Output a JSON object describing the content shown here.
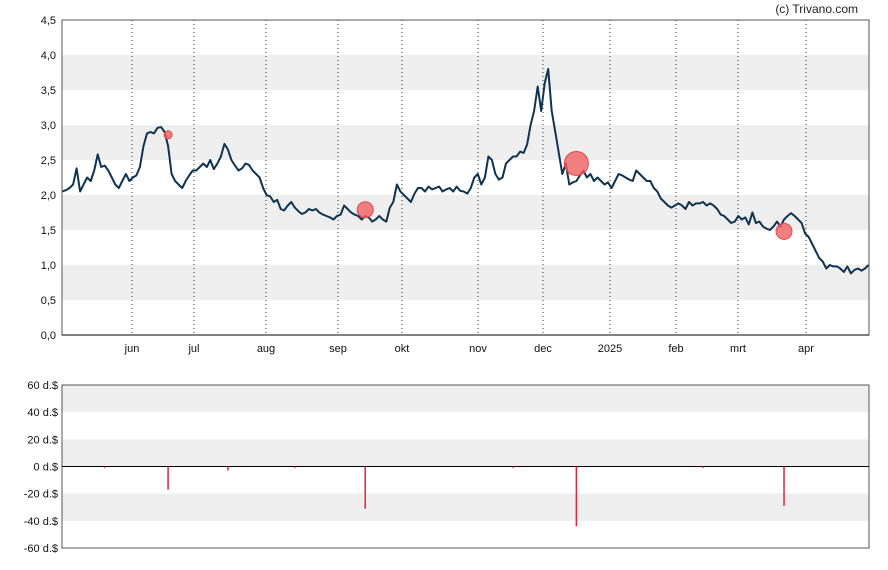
{
  "copyright": "(c) Trivano.com",
  "colors": {
    "line": "#0f3350",
    "band": "#eeeeee",
    "marker": "#f06060",
    "bar": "#e8203a"
  },
  "chart_data": [
    {
      "type": "line",
      "title": "",
      "ylim": [
        0,
        4.5
      ],
      "y_ticks": [
        "0,0",
        "0,5",
        "1,0",
        "1,5",
        "2,0",
        "2,5",
        "3,0",
        "3,5",
        "4,0",
        "4,5"
      ],
      "x_labels": [
        "jun",
        "jul",
        "aug",
        "sep",
        "okt",
        "nov",
        "dec",
        "2025",
        "feb",
        "mrt",
        "apr"
      ],
      "grid": "dotted vertical lines at month starts, alternating horizontal bands",
      "series": [
        {
          "values": [
            2.05,
            2.07,
            2.1,
            2.15,
            2.38,
            2.05,
            2.15,
            2.25,
            2.2,
            2.35,
            2.58,
            2.4,
            2.42,
            2.35,
            2.25,
            2.15,
            2.1,
            2.2,
            2.3,
            2.2,
            2.25,
            2.28,
            2.4,
            2.7,
            2.88,
            2.9,
            2.88,
            2.96,
            2.97,
            2.9,
            2.7,
            2.3,
            2.2,
            2.15,
            2.1,
            2.2,
            2.28,
            2.35,
            2.35,
            2.4,
            2.45,
            2.4,
            2.5,
            2.37,
            2.45,
            2.55,
            2.73,
            2.65,
            2.5,
            2.42,
            2.35,
            2.38,
            2.45,
            2.43,
            2.35,
            2.3,
            2.25,
            2.1,
            2.0,
            1.98,
            1.9,
            1.93,
            1.8,
            1.78,
            1.85,
            1.9,
            1.82,
            1.77,
            1.73,
            1.75,
            1.8,
            1.78,
            1.8,
            1.75,
            1.72,
            1.7,
            1.68,
            1.65,
            1.7,
            1.72,
            1.85,
            1.8,
            1.75,
            1.72,
            1.7,
            1.65,
            1.7,
            1.68,
            1.62,
            1.65,
            1.7,
            1.65,
            1.62,
            1.82,
            1.9,
            2.15,
            2.05,
            2.0,
            1.95,
            1.9,
            2.02,
            2.1,
            2.1,
            2.05,
            2.12,
            2.08,
            2.1,
            2.12,
            2.05,
            2.08,
            2.1,
            2.05,
            2.12,
            2.06,
            2.05,
            2.02,
            2.1,
            2.25,
            2.3,
            2.15,
            2.25,
            2.55,
            2.5,
            2.3,
            2.22,
            2.25,
            2.45,
            2.5,
            2.55,
            2.55,
            2.62,
            2.6,
            2.72,
            3.0,
            3.2,
            3.55,
            3.2,
            3.6,
            3.8,
            3.2,
            2.9,
            2.6,
            2.3,
            2.45,
            2.15,
            2.18,
            2.2,
            2.28,
            2.35,
            2.25,
            2.3,
            2.2,
            2.25,
            2.2,
            2.15,
            2.18,
            2.1,
            2.2,
            2.3,
            2.28,
            2.25,
            2.22,
            2.2,
            2.35,
            2.3,
            2.25,
            2.2,
            2.2,
            2.1,
            2.05,
            1.95,
            1.9,
            1.85,
            1.82,
            1.85,
            1.88,
            1.85,
            1.8,
            1.9,
            1.85,
            1.88,
            1.88,
            1.9,
            1.85,
            1.88,
            1.85,
            1.8,
            1.72,
            1.7,
            1.65,
            1.6,
            1.62,
            1.7,
            1.65,
            1.68,
            1.58,
            1.75,
            1.6,
            1.62,
            1.55,
            1.52,
            1.5,
            1.55,
            1.62,
            1.55,
            1.65,
            1.7,
            1.74,
            1.7,
            1.65,
            1.6,
            1.45,
            1.4,
            1.3,
            1.2,
            1.1,
            1.05,
            0.95,
            1.0,
            0.98,
            0.98,
            0.95,
            0.9,
            0.98,
            0.88,
            0.93,
            0.95,
            0.92,
            0.95,
            1.0
          ]
        }
      ],
      "markers": [
        {
          "index": 30,
          "y": 2.86,
          "size": "small"
        },
        {
          "index": 86,
          "y": 1.79,
          "size": "medium"
        },
        {
          "index": 146,
          "y": 2.45,
          "size": "large"
        },
        {
          "index": 205,
          "y": 1.48,
          "size": "medium"
        }
      ]
    },
    {
      "type": "bar",
      "title": "",
      "ylim": [
        -60,
        60
      ],
      "y_ticks": [
        "60 d.$",
        "40 d.$",
        "20 d.$",
        "0 d.$",
        "-20 d.$",
        "-40 d.$",
        "-60 d.$"
      ],
      "series": [
        {
          "points": [
            {
              "index": 12,
              "value": -1
            },
            {
              "index": 30,
              "value": -17
            },
            {
              "index": 47,
              "value": -3
            },
            {
              "index": 66,
              "value": -1
            },
            {
              "index": 86,
              "value": -31
            },
            {
              "index": 128,
              "value": -1
            },
            {
              "index": 146,
              "value": -44
            },
            {
              "index": 182,
              "value": -1
            },
            {
              "index": 205,
              "value": -29
            }
          ]
        }
      ]
    }
  ]
}
